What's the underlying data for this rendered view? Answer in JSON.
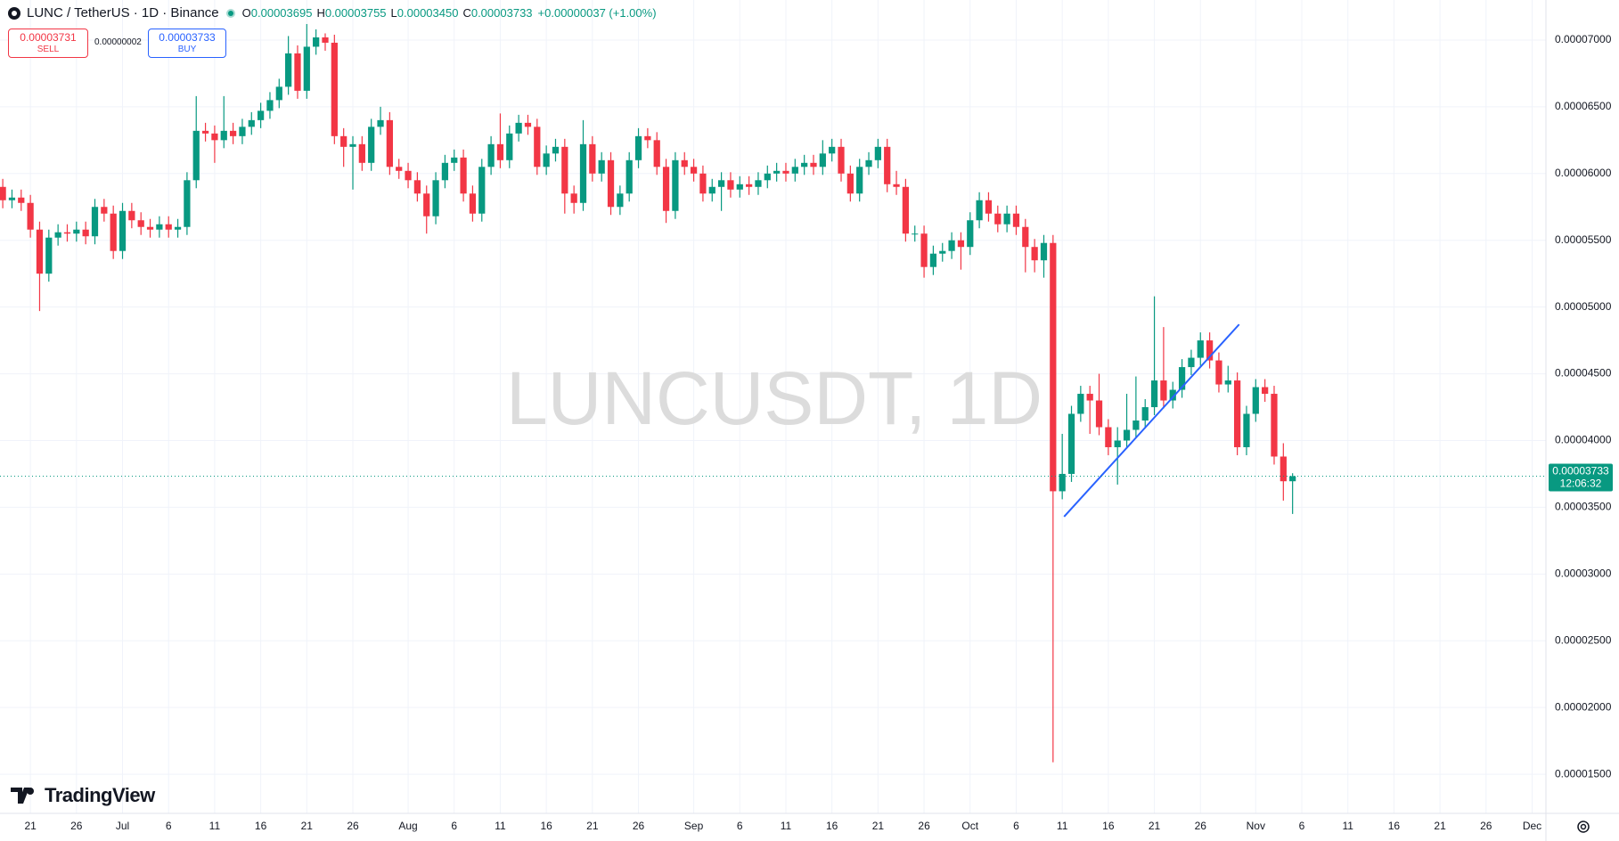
{
  "header": {
    "symbol": "LUNC / TetherUS · 1D · Binance",
    "ohlc": [
      {
        "key": "O",
        "value": "0.00003695"
      },
      {
        "key": "H",
        "value": "0.00003755"
      },
      {
        "key": "L",
        "value": "0.00003450"
      },
      {
        "key": "C",
        "value": "0.00003733"
      }
    ],
    "change": "+0.00000037 (+1.00%)"
  },
  "trade": {
    "sell_price": "0.00003731",
    "sell_label": "SELL",
    "spread": "0.00000002",
    "buy_price": "0.00003733",
    "buy_label": "BUY"
  },
  "watermark": "LUNCUSDT, 1D",
  "branding": "TradingView",
  "chart_data": {
    "type": "candlestick",
    "up_color": "#089981",
    "down_color": "#f23645",
    "grid": true,
    "open": [
      5.9e-05,
      5.8e-05,
      5.82e-05,
      5.78e-05,
      5.58e-05,
      5.25e-05,
      5.52e-05,
      5.56e-05,
      5.55e-05,
      5.58e-05,
      5.53e-05,
      5.75e-05,
      5.7e-05,
      5.42e-05,
      5.72e-05,
      5.65e-05,
      5.6e-05,
      5.58e-05,
      5.62e-05,
      5.58e-05,
      5.6e-05,
      5.95e-05,
      6.32e-05,
      6.3e-05,
      6.25e-05,
      6.32e-05,
      6.28e-05,
      6.35e-05,
      6.4e-05,
      6.47e-05,
      6.55e-05,
      6.65e-05,
      6.9e-05,
      6.62e-05,
      6.95e-05,
      7.02e-05,
      6.98e-05,
      6.28e-05,
      6.2e-05,
      6.22e-05,
      6.08e-05,
      6.35e-05,
      6.4e-05,
      6.05e-05,
      6.02e-05,
      5.95e-05,
      5.85e-05,
      5.68e-05,
      5.95e-05,
      6.08e-05,
      6.12e-05,
      5.85e-05,
      5.7e-05,
      6.05e-05,
      6.22e-05,
      6.1e-05,
      6.3e-05,
      6.38e-05,
      6.35e-05,
      6.05e-05,
      6.15e-05,
      6.2e-05,
      5.85e-05,
      5.78e-05,
      6.22e-05,
      6e-05,
      6.1e-05,
      5.75e-05,
      5.85e-05,
      6.1e-05,
      6.28e-05,
      6.25e-05,
      6.05e-05,
      5.72e-05,
      6.1e-05,
      6.05e-05,
      6e-05,
      5.85e-05,
      5.9e-05,
      5.95e-05,
      5.88e-05,
      5.92e-05,
      5.9e-05,
      5.95e-05,
      6e-05,
      6.02e-05,
      6e-05,
      6.05e-05,
      6.08e-05,
      6.05e-05,
      6.15e-05,
      6.2e-05,
      6e-05,
      5.85e-05,
      6.05e-05,
      6.1e-05,
      6.2e-05,
      5.92e-05,
      5.9e-05,
      5.55e-05,
      5.55e-05,
      5.3e-05,
      5.4e-05,
      5.42e-05,
      5.5e-05,
      5.45e-05,
      5.65e-05,
      5.8e-05,
      5.7e-05,
      5.62e-05,
      5.7e-05,
      5.6e-05,
      5.45e-05,
      5.35e-05,
      5.48e-05,
      3.62e-05,
      3.75e-05,
      4.2e-05,
      4.35e-05,
      4.3e-05,
      4.1e-05,
      3.95e-05,
      4e-05,
      4.08e-05,
      4.15e-05,
      4.25e-05,
      4.45e-05,
      4.3e-05,
      4.38e-05,
      4.55e-05,
      4.62e-05,
      4.75e-05,
      4.6e-05,
      4.42e-05,
      4.45e-05,
      3.95e-05,
      4.2e-05,
      4.4e-05,
      4.35e-05,
      3.88e-05,
      3.695e-05
    ],
    "high": [
      5.96e-05,
      5.88e-05,
      5.88e-05,
      5.84e-05,
      5.64e-05,
      5.58e-05,
      5.62e-05,
      5.62e-05,
      5.64e-05,
      5.64e-05,
      5.81e-05,
      5.81e-05,
      5.76e-05,
      5.78e-05,
      5.78e-05,
      5.71e-05,
      5.66e-05,
      5.68e-05,
      5.68e-05,
      5.66e-05,
      6.01e-05,
      6.58e-05,
      6.38e-05,
      6.36e-05,
      6.58e-05,
      6.38e-05,
      6.41e-05,
      6.46e-05,
      6.53e-05,
      6.61e-05,
      6.71e-05,
      7.03e-05,
      6.96e-05,
      7.12e-05,
      7.08e-05,
      7.05e-05,
      7.04e-05,
      6.34e-05,
      6.28e-05,
      6.28e-05,
      6.41e-05,
      6.5e-05,
      6.46e-05,
      6.11e-05,
      6.08e-05,
      6.01e-05,
      5.91e-05,
      6.01e-05,
      6.14e-05,
      6.18e-05,
      6.18e-05,
      5.91e-05,
      6.11e-05,
      6.28e-05,
      6.45e-05,
      6.36e-05,
      6.44e-05,
      6.44e-05,
      6.41e-05,
      6.21e-05,
      6.26e-05,
      6.26e-05,
      5.91e-05,
      6.4e-05,
      6.28e-05,
      6.16e-05,
      6.16e-05,
      5.91e-05,
      6.16e-05,
      6.34e-05,
      6.34e-05,
      6.31e-05,
      6.11e-05,
      6.16e-05,
      6.16e-05,
      6.11e-05,
      6.06e-05,
      5.96e-05,
      6.01e-05,
      6.01e-05,
      5.98e-05,
      5.98e-05,
      6.01e-05,
      6.06e-05,
      6.08e-05,
      6.08e-05,
      6.11e-05,
      6.14e-05,
      6.14e-05,
      6.25e-05,
      6.26e-05,
      6.26e-05,
      6.06e-05,
      6.11e-05,
      6.16e-05,
      6.26e-05,
      6.26e-05,
      6.02e-05,
      5.96e-05,
      5.61e-05,
      5.61e-05,
      5.46e-05,
      5.48e-05,
      5.56e-05,
      5.56e-05,
      5.71e-05,
      5.86e-05,
      5.86e-05,
      5.76e-05,
      5.76e-05,
      5.76e-05,
      5.66e-05,
      5.51e-05,
      5.54e-05,
      5.54e-05,
      4.05e-05,
      4.26e-05,
      4.41e-05,
      4.41e-05,
      4.5e-05,
      4.16e-05,
      4.1e-05,
      4.35e-05,
      4.48e-05,
      4.31e-05,
      5.08e-05,
      4.85e-05,
      4.44e-05,
      4.61e-05,
      4.68e-05,
      4.81e-05,
      4.81e-05,
      4.66e-05,
      4.56e-05,
      4.51e-05,
      4.26e-05,
      4.46e-05,
      4.46e-05,
      4.41e-05,
      3.98e-05,
      3.755e-05
    ],
    "low": [
      5.74e-05,
      5.74e-05,
      5.72e-05,
      5.52e-05,
      4.97e-05,
      5.19e-05,
      5.46e-05,
      5.49e-05,
      5.49e-05,
      5.47e-05,
      5.47e-05,
      5.64e-05,
      5.36e-05,
      5.36e-05,
      5.59e-05,
      5.54e-05,
      5.52e-05,
      5.52e-05,
      5.52e-05,
      5.52e-05,
      5.54e-05,
      5.89e-05,
      6.24e-05,
      6.08e-05,
      6.19e-05,
      6.22e-05,
      6.22e-05,
      6.29e-05,
      6.34e-05,
      6.41e-05,
      6.49e-05,
      6.59e-05,
      6.56e-05,
      6.56e-05,
      6.89e-05,
      6.92e-05,
      6.22e-05,
      6.05e-05,
      5.88e-05,
      6.02e-05,
      6.02e-05,
      6.29e-05,
      5.99e-05,
      5.96e-05,
      5.89e-05,
      5.79e-05,
      5.55e-05,
      5.62e-05,
      5.89e-05,
      6.02e-05,
      5.79e-05,
      5.64e-05,
      5.64e-05,
      5.99e-05,
      6.04e-05,
      6.04e-05,
      6.24e-05,
      6.29e-05,
      5.99e-05,
      5.99e-05,
      6.09e-05,
      5.7e-05,
      5.7e-05,
      5.72e-05,
      5.94e-05,
      5.94e-05,
      5.69e-05,
      5.69e-05,
      5.79e-05,
      6.04e-05,
      6.19e-05,
      5.99e-05,
      5.63e-05,
      5.66e-05,
      5.99e-05,
      5.94e-05,
      5.79e-05,
      5.79e-05,
      5.72e-05,
      5.82e-05,
      5.82e-05,
      5.84e-05,
      5.84e-05,
      5.89e-05,
      5.94e-05,
      5.94e-05,
      5.94e-05,
      5.99e-05,
      5.99e-05,
      5.99e-05,
      6.09e-05,
      5.94e-05,
      5.79e-05,
      5.79e-05,
      5.99e-05,
      6.04e-05,
      5.86e-05,
      5.84e-05,
      5.49e-05,
      5.49e-05,
      5.22e-05,
      5.24e-05,
      5.34e-05,
      5.36e-05,
      5.28e-05,
      5.39e-05,
      5.59e-05,
      5.64e-05,
      5.56e-05,
      5.56e-05,
      5.54e-05,
      5.26e-05,
      5.26e-05,
      5.22e-05,
      1.59e-05,
      3.56e-05,
      3.69e-05,
      4.14e-05,
      4.05e-05,
      4.04e-05,
      3.89e-05,
      3.67e-05,
      3.94e-05,
      4.02e-05,
      4.09e-05,
      4.19e-05,
      4.24e-05,
      4.24e-05,
      4.32e-05,
      4.49e-05,
      4.56e-05,
      4.54e-05,
      4.36e-05,
      4.36e-05,
      3.89e-05,
      3.89e-05,
      4.14e-05,
      4.29e-05,
      3.82e-05,
      3.55e-05,
      3.45e-05
    ],
    "close": [
      5.8e-05,
      5.82e-05,
      5.78e-05,
      5.58e-05,
      5.25e-05,
      5.52e-05,
      5.56e-05,
      5.55e-05,
      5.58e-05,
      5.53e-05,
      5.75e-05,
      5.7e-05,
      5.42e-05,
      5.72e-05,
      5.65e-05,
      5.6e-05,
      5.58e-05,
      5.62e-05,
      5.58e-05,
      5.6e-05,
      5.95e-05,
      6.32e-05,
      6.3e-05,
      6.25e-05,
      6.32e-05,
      6.28e-05,
      6.35e-05,
      6.4e-05,
      6.47e-05,
      6.55e-05,
      6.65e-05,
      6.9e-05,
      6.62e-05,
      6.95e-05,
      7.02e-05,
      6.98e-05,
      6.28e-05,
      6.2e-05,
      6.22e-05,
      6.08e-05,
      6.35e-05,
      6.4e-05,
      6.05e-05,
      6.02e-05,
      5.95e-05,
      5.85e-05,
      5.68e-05,
      5.95e-05,
      6.08e-05,
      6.12e-05,
      5.85e-05,
      5.7e-05,
      6.05e-05,
      6.22e-05,
      6.1e-05,
      6.3e-05,
      6.38e-05,
      6.35e-05,
      6.05e-05,
      6.15e-05,
      6.2e-05,
      5.85e-05,
      5.78e-05,
      6.22e-05,
      6e-05,
      6.1e-05,
      5.75e-05,
      5.85e-05,
      6.1e-05,
      6.28e-05,
      6.25e-05,
      6.05e-05,
      5.72e-05,
      6.1e-05,
      6.05e-05,
      6e-05,
      5.85e-05,
      5.9e-05,
      5.95e-05,
      5.88e-05,
      5.92e-05,
      5.9e-05,
      5.95e-05,
      6e-05,
      6.02e-05,
      6e-05,
      6.05e-05,
      6.08e-05,
      6.05e-05,
      6.15e-05,
      6.2e-05,
      6e-05,
      5.85e-05,
      6.05e-05,
      6.1e-05,
      6.2e-05,
      5.92e-05,
      5.9e-05,
      5.55e-05,
      5.55e-05,
      5.3e-05,
      5.4e-05,
      5.42e-05,
      5.5e-05,
      5.45e-05,
      5.65e-05,
      5.8e-05,
      5.7e-05,
      5.62e-05,
      5.7e-05,
      5.6e-05,
      5.45e-05,
      5.35e-05,
      5.48e-05,
      3.62e-05,
      3.75e-05,
      4.2e-05,
      4.35e-05,
      4.3e-05,
      4.1e-05,
      3.95e-05,
      4e-05,
      4.08e-05,
      4.15e-05,
      4.25e-05,
      4.45e-05,
      4.3e-05,
      4.38e-05,
      4.55e-05,
      4.62e-05,
      4.75e-05,
      4.6e-05,
      4.42e-05,
      4.45e-05,
      3.95e-05,
      4.2e-05,
      4.4e-05,
      4.35e-05,
      3.88e-05,
      3.695e-05,
      3.733e-05
    ],
    "xlim": [
      -0.3,
      167.5
    ],
    "xticks": [
      {
        "value": 3,
        "label": "21"
      },
      {
        "value": 8,
        "label": "26"
      },
      {
        "value": 13,
        "label": "Jul"
      },
      {
        "value": 18,
        "label": "6"
      },
      {
        "value": 23,
        "label": "11"
      },
      {
        "value": 28,
        "label": "16"
      },
      {
        "value": 33,
        "label": "21"
      },
      {
        "value": 38,
        "label": "26"
      },
      {
        "value": 44,
        "label": "Aug"
      },
      {
        "value": 49,
        "label": "6"
      },
      {
        "value": 54,
        "label": "11"
      },
      {
        "value": 59,
        "label": "16"
      },
      {
        "value": 64,
        "label": "21"
      },
      {
        "value": 69,
        "label": "26"
      },
      {
        "value": 75,
        "label": "Sep"
      },
      {
        "value": 80,
        "label": "6"
      },
      {
        "value": 85,
        "label": "11"
      },
      {
        "value": 90,
        "label": "16"
      },
      {
        "value": 95,
        "label": "21"
      },
      {
        "value": 100,
        "label": "26"
      },
      {
        "value": 105,
        "label": "Oct"
      },
      {
        "value": 110,
        "label": "6"
      },
      {
        "value": 115,
        "label": "11"
      },
      {
        "value": 120,
        "label": "16"
      },
      {
        "value": 125,
        "label": "21"
      },
      {
        "value": 130,
        "label": "26"
      },
      {
        "value": 136,
        "label": "Nov"
      },
      {
        "value": 141,
        "label": "6"
      },
      {
        "value": 146,
        "label": "11"
      },
      {
        "value": 151,
        "label": "16"
      },
      {
        "value": 156,
        "label": "21"
      },
      {
        "value": 161,
        "label": "26"
      },
      {
        "value": 166,
        "label": "Dec"
      }
    ],
    "ylim": [
      1.207e-05,
      7.3e-05
    ],
    "yticks": [
      {
        "value": 1.5e-05,
        "label": "0.00001500"
      },
      {
        "value": 2e-05,
        "label": "0.00002000"
      },
      {
        "value": 2.5e-05,
        "label": "0.00002500"
      },
      {
        "value": 3e-05,
        "label": "0.00003000"
      },
      {
        "value": 3.5e-05,
        "label": "0.00003500"
      },
      {
        "value": 4e-05,
        "label": "0.00004000"
      },
      {
        "value": 4.5e-05,
        "label": "0.00004500"
      },
      {
        "value": 5e-05,
        "label": "0.00005000"
      },
      {
        "value": 5.5e-05,
        "label": "0.00005500"
      },
      {
        "value": 6e-05,
        "label": "0.00006000"
      },
      {
        "value": 6.5e-05,
        "label": "0.00006500"
      },
      {
        "value": 7e-05,
        "label": "0.00007000"
      }
    ],
    "last_price": {
      "value": 3.733e-05,
      "label": "0.00003733",
      "countdown": "12:06:32",
      "color": "#089981"
    },
    "trendline": {
      "x": [
        115.2,
        134.2
      ],
      "y": [
        3.43e-05,
        4.87e-05
      ],
      "color": "#2962ff"
    }
  }
}
